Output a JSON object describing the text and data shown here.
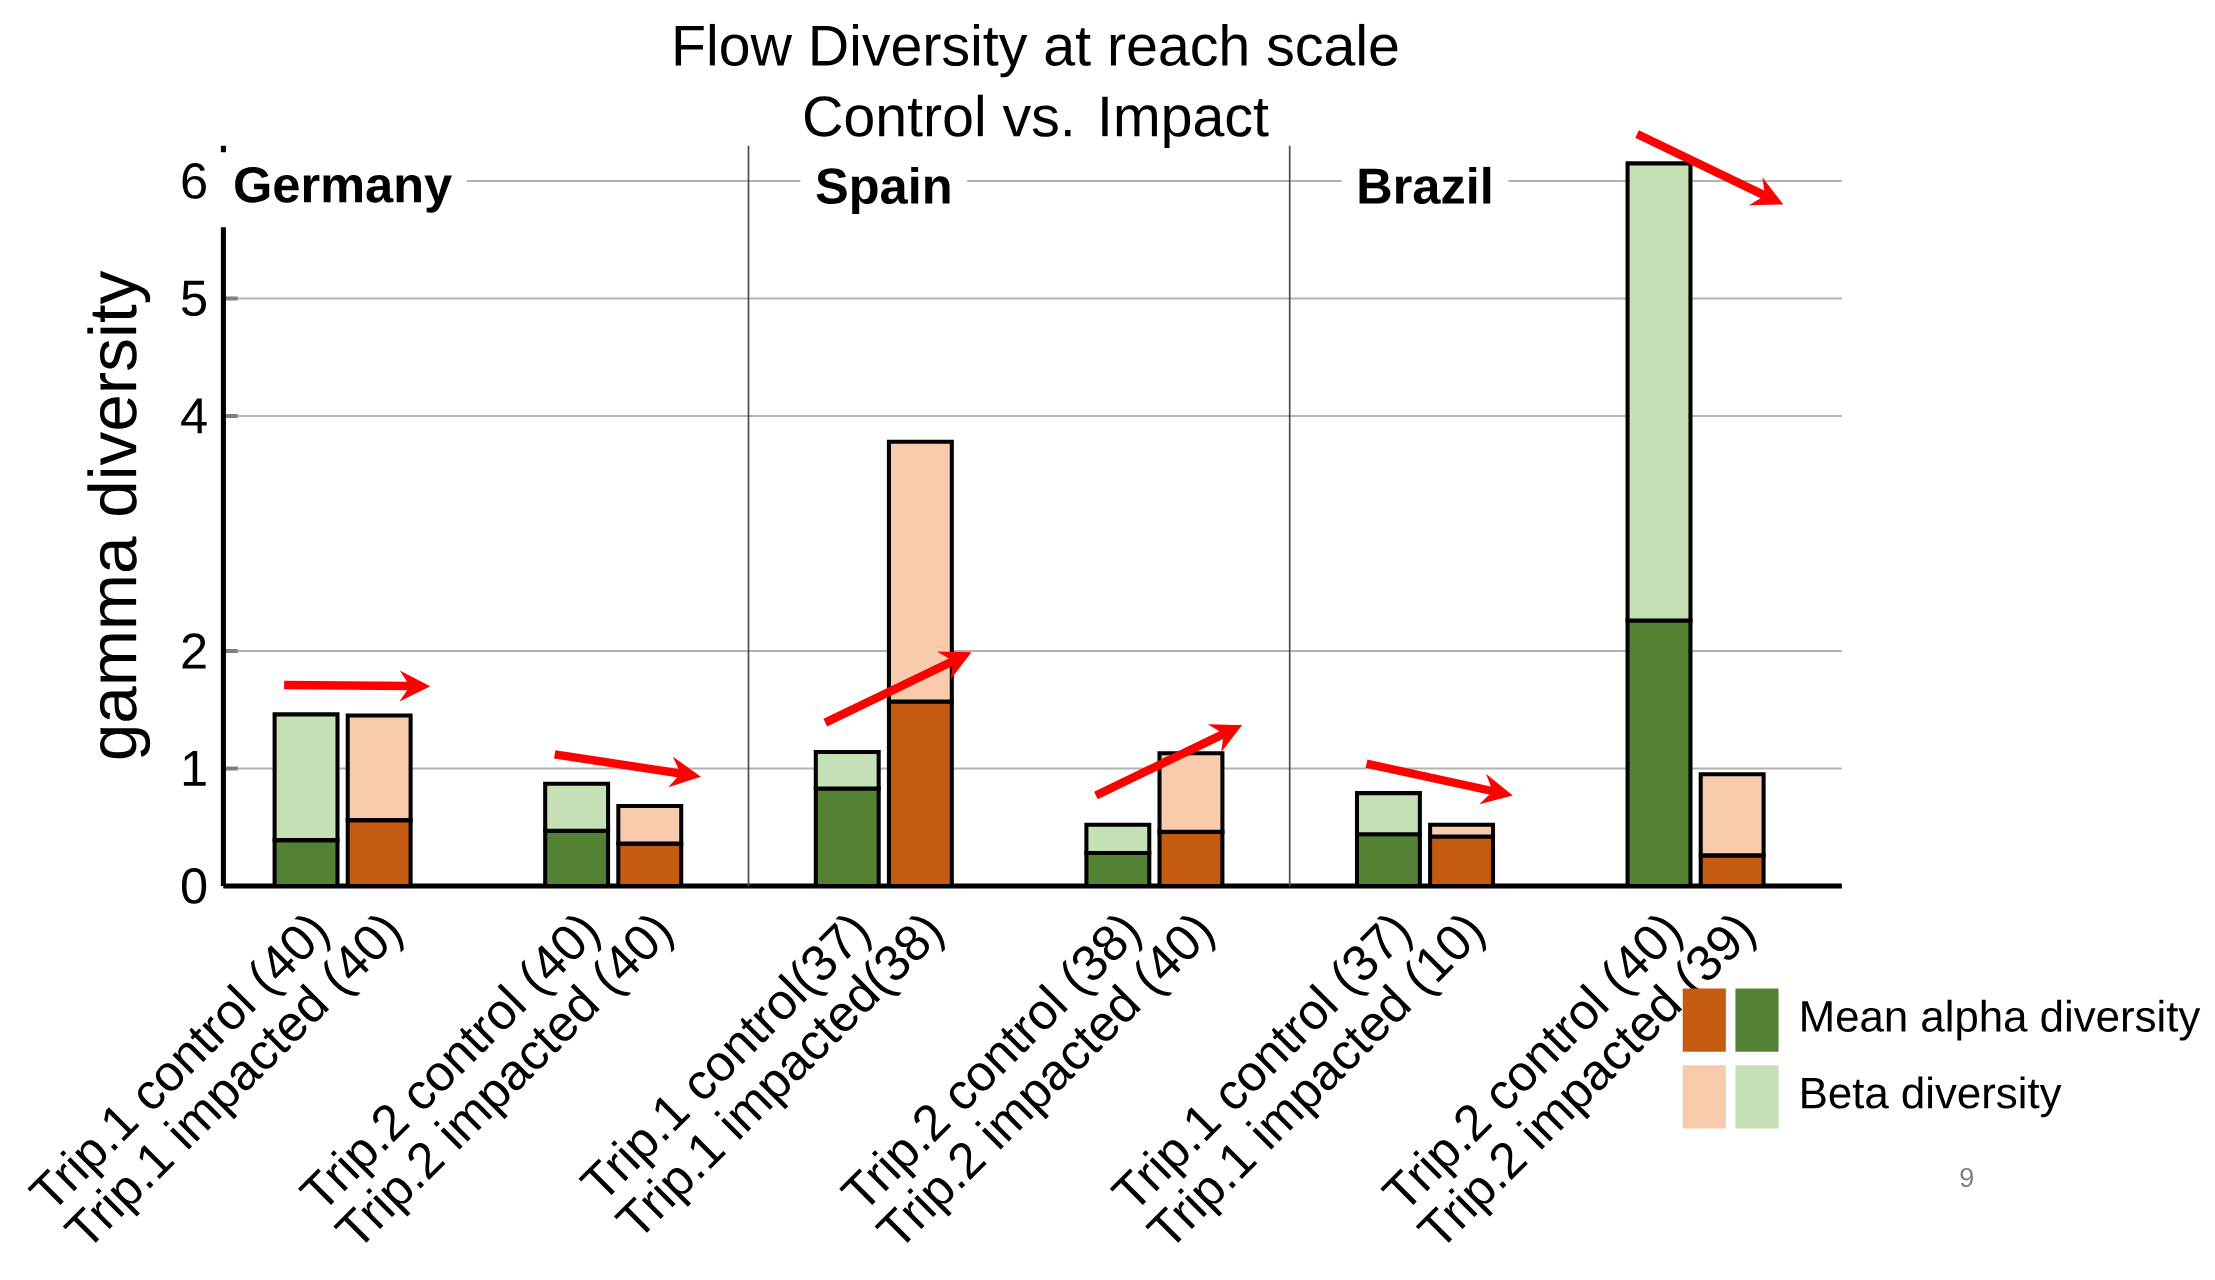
{
  "chart_data": {
    "type": "bar",
    "stacked": true,
    "title": "Flow Diversity at reach scale",
    "subtitle": "Control vs. Impact",
    "ylabel": "gamma diversity",
    "categories": [
      "Trip.1 control (40)",
      "Trip.1 impacted (40)",
      "Trip.2 control (40)",
      "Trip.2 impacted (40)",
      "Trip.1 control(37)",
      "Trip.1 impacted(38)",
      "Trip.2 control (38)",
      "Trip.2 impacted (40)",
      "Trip.1 control (37)",
      "Trip.1 impacted (10)",
      "Trip.2 control (40)",
      "Trip.2 impacted (39)"
    ],
    "series": [
      {
        "name": "Mean alpha diversity",
        "colors": [
          "#548235",
          "#c55a11",
          "#548235",
          "#c55a11",
          "#548235",
          "#c55a11",
          "#548235",
          "#c55a11",
          "#548235",
          "#c55a11",
          "#548235",
          "#c55a11"
        ],
        "values": [
          0.39,
          0.56,
          0.47,
          0.36,
          0.83,
          1.57,
          0.28,
          0.46,
          0.44,
          0.42,
          2.26,
          0.26
        ]
      },
      {
        "name": "Beta diversity",
        "colors": [
          "#c5e0b4",
          "#f8cbad",
          "#c5e0b4",
          "#f8cbad",
          "#c5e0b4",
          "#f8cbad",
          "#c5e0b4",
          "#f8cbad",
          "#c5e0b4",
          "#f8cbad",
          "#c5e0b4",
          "#f8cbad"
        ],
        "values": [
          1.07,
          0.89,
          0.4,
          0.32,
          0.31,
          2.21,
          0.24,
          0.67,
          0.35,
          0.1,
          3.89,
          0.69
        ]
      }
    ],
    "ylim": [
      0,
      6.3
    ],
    "yticks": [
      0,
      1,
      2,
      4,
      5,
      6
    ],
    "grid": "y",
    "legend": "bottom right",
    "annotations": [
      "Germany",
      "Spain",
      "Brazil",
      "9"
    ]
  }
}
